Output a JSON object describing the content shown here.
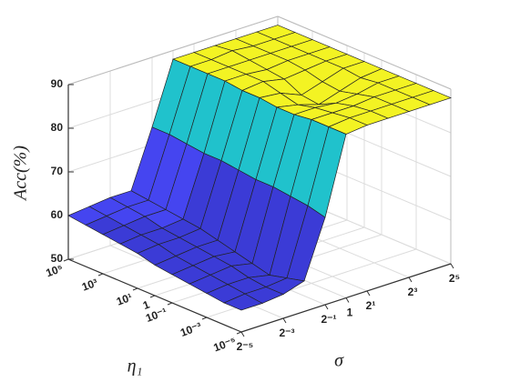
{
  "chart_data": {
    "type": "surface",
    "x_label": "σ",
    "y_label": "η₁",
    "z_label": "Acc(%)",
    "x": [
      0.03125,
      0.0625,
      0.125,
      0.25,
      0.5,
      1,
      2,
      4,
      8,
      16,
      32
    ],
    "y": [
      100000,
      10000,
      1000,
      100,
      10,
      1,
      0.1,
      0.01,
      0.001,
      0.0001,
      1e-05
    ],
    "z": [
      [
        60,
        60.5,
        61,
        61,
        74,
        88,
        88,
        88,
        88,
        88,
        88
      ],
      [
        59.5,
        60,
        60.5,
        60.5,
        74,
        88,
        88,
        88.5,
        88,
        88,
        88
      ],
      [
        59,
        59.5,
        60,
        60,
        73.5,
        88,
        88,
        88,
        88,
        88,
        88
      ],
      [
        58.5,
        59,
        59,
        59.5,
        73,
        88,
        88,
        87.5,
        88,
        88,
        88
      ],
      [
        58,
        58.5,
        58.5,
        59,
        73,
        87.5,
        88,
        87,
        87.5,
        88,
        88
      ],
      [
        57,
        57.5,
        58,
        58,
        72.5,
        87.5,
        87,
        85,
        86.5,
        88,
        88
      ],
      [
        56.5,
        57,
        57.5,
        57,
        72,
        87,
        86,
        84.5,
        86,
        87.5,
        88
      ],
      [
        56,
        56.5,
        57,
        56,
        72,
        87,
        87,
        86.5,
        87,
        88,
        88
      ],
      [
        55.5,
        56,
        56,
        55,
        71.5,
        87.5,
        87.5,
        87.5,
        88,
        88,
        88
      ],
      [
        55,
        55.5,
        55.5,
        56,
        71,
        87.5,
        88,
        88,
        88,
        88,
        88
      ],
      [
        55,
        55,
        55.5,
        57,
        70,
        87.5,
        88,
        88,
        88,
        88,
        88
      ]
    ],
    "x_log_base": 2,
    "y_log_base": 10,
    "xlim": [
      0.03125,
      32
    ],
    "ylim": [
      100000,
      1e-05
    ],
    "zlim": [
      50,
      90
    ],
    "xticks": [
      {
        "value": 0.03125,
        "label": "2⁻⁵"
      },
      {
        "value": 0.125,
        "label": "2⁻³"
      },
      {
        "value": 0.5,
        "label": "2⁻¹"
      },
      1,
      {
        "value": 2,
        "label": "2¹"
      },
      {
        "value": 8,
        "label": "2³"
      },
      {
        "value": 32,
        "label": "2⁵"
      }
    ],
    "yticks": [
      {
        "value": 100000,
        "label": "10⁵"
      },
      {
        "value": 1000,
        "label": "10³"
      },
      {
        "value": 10,
        "label": "10¹"
      },
      1,
      {
        "value": 0.1,
        "label": "10⁻¹"
      },
      {
        "value": 0.001,
        "label": "10⁻³"
      },
      {
        "value": 1e-05,
        "label": "10⁻⁵"
      }
    ],
    "zticks": [
      50,
      60,
      70,
      80,
      90
    ],
    "colormap": [
      "#3b3bd6",
      "#4545f0",
      "#20c2cc",
      "#f3f323"
    ],
    "grid": true
  }
}
